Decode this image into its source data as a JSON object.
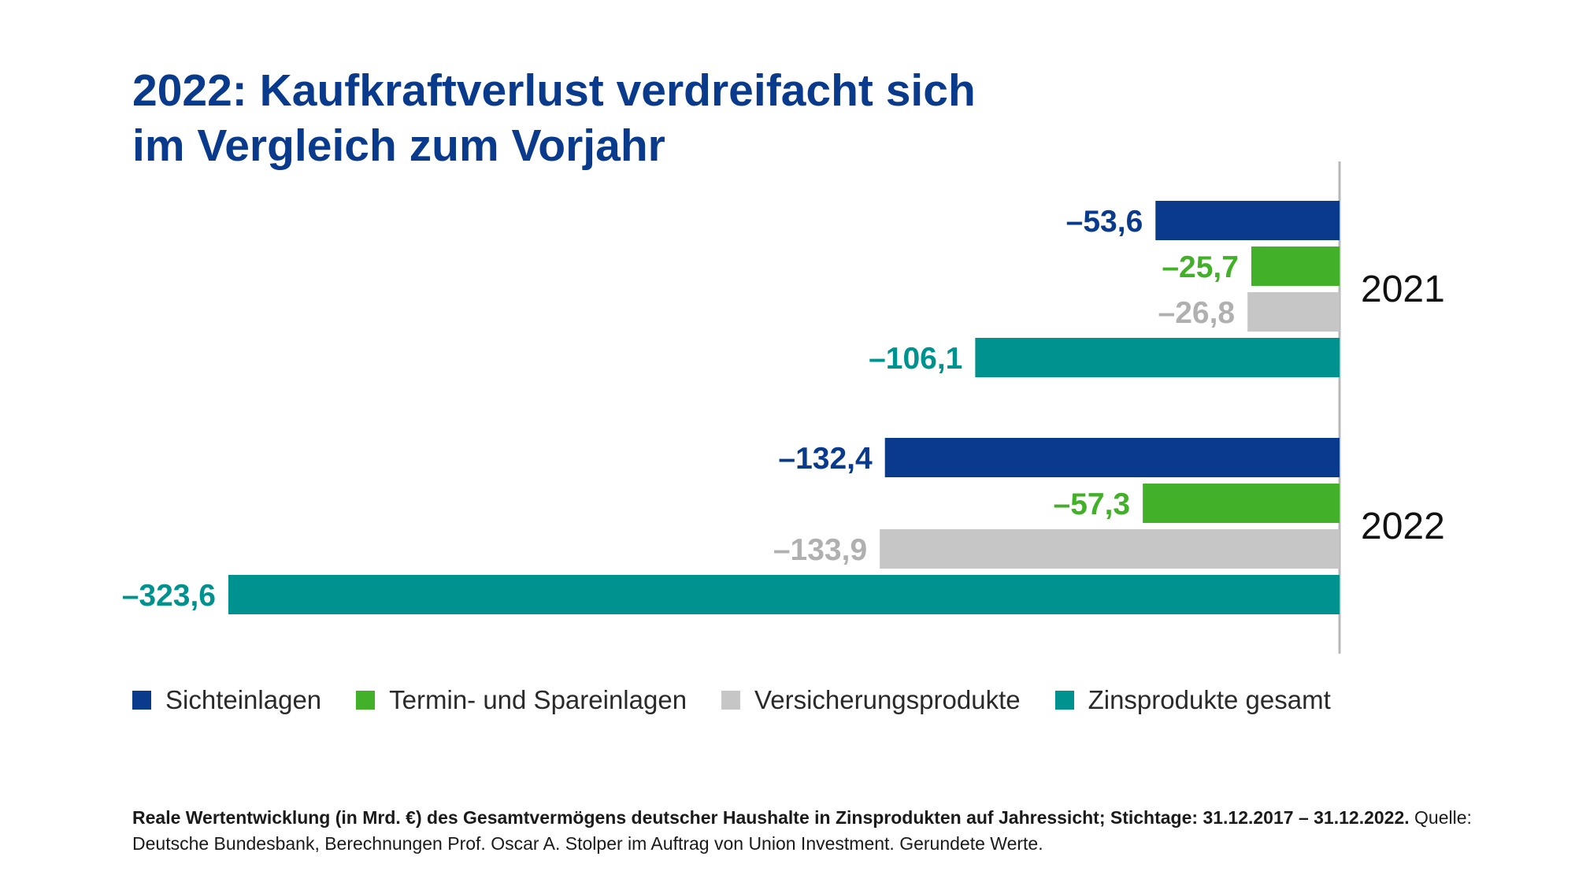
{
  "title_line1": "2022: Kaufkraftverlust verdreifacht sich",
  "title_line2": "im Vergleich zum Vorjahr",
  "colors": {
    "title": "#0a3a8c",
    "Sichteinlagen": "#0a3a8c",
    "Termin- und Spareinlagen": "#43b02a",
    "Versicherungsprodukte": "#c6c6c6",
    "Zinsprodukte gesamt": "#00928f",
    "axis": "#b8b8b8"
  },
  "chart_data": {
    "type": "bar",
    "orientation": "horizontal",
    "categories": [
      "2021",
      "2022"
    ],
    "series": [
      {
        "name": "Sichteinlagen",
        "values": [
          -53.6,
          -132.4
        ],
        "labels": [
          "–53,6",
          "–132,4"
        ],
        "color": "#0a3a8c"
      },
      {
        "name": "Termin- und Spareinlagen",
        "values": [
          -25.7,
          -57.3
        ],
        "labels": [
          "–25,7",
          "–57,3"
        ],
        "color": "#43b02a"
      },
      {
        "name": "Versicherungsprodukte",
        "values": [
          -26.8,
          -133.9
        ],
        "labels": [
          "–26,8",
          "–133,9"
        ],
        "color": "#c6c6c6"
      },
      {
        "name": "Zinsprodukte gesamt",
        "values": [
          -106.1,
          -323.6
        ],
        "labels": [
          "–106,1",
          "–323,6"
        ],
        "color": "#00928f"
      }
    ],
    "xlim": [
      -323.6,
      0
    ],
    "legend": "bottom",
    "grid": false
  },
  "legend_items": [
    {
      "label": "Sichteinlagen"
    },
    {
      "label": "Termin- und Spareinlagen"
    },
    {
      "label": "Versicherungsprodukte"
    },
    {
      "label": "Zinsprodukte gesamt"
    }
  ],
  "footnote_bold": "Reale Wertentwicklung (in Mrd. €) des Gesamtvermögens deutscher Haushalte in Zinsprodukten auf Jahressicht; Stichtage: 31.12.2017 – 31.12.2022.",
  "footnote_regular": " Quelle: Deutsche Bundesbank, Berechnungen Prof. Oscar A. Stolper im Auftrag von Union Investment. Gerundete Werte."
}
